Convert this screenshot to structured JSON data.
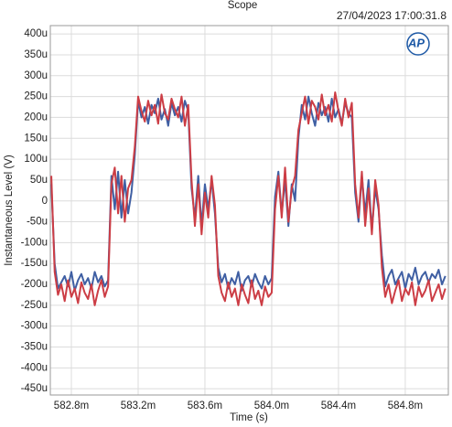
{
  "chart_data": {
    "type": "line",
    "title": "Scope",
    "subtitle": "27/04/2023 17:00:31.8",
    "logo": "AP",
    "x_label": "Time (s)",
    "y_label": "Instantaneous Level (V)",
    "grid": true,
    "xlim": [
      0.582674,
      0.585058
    ],
    "ylim": [
      -0.000465,
      0.00042
    ],
    "xticks": [
      {
        "value": 0.5828,
        "label": "582.8m"
      },
      {
        "value": 0.5832,
        "label": "583.2m"
      },
      {
        "value": 0.5836,
        "label": "583.6m"
      },
      {
        "value": 0.584,
        "label": "584.0m"
      },
      {
        "value": 0.5844,
        "label": "584.4m"
      },
      {
        "value": 0.5848,
        "label": "584.8m"
      }
    ],
    "yticks": [
      {
        "value": 0.0004,
        "label": "400u"
      },
      {
        "value": 0.00035,
        "label": "350u"
      },
      {
        "value": 0.0003,
        "label": "300u"
      },
      {
        "value": 0.00025,
        "label": "250u"
      },
      {
        "value": 0.0002,
        "label": "200u"
      },
      {
        "value": 0.00015,
        "label": "150u"
      },
      {
        "value": 0.0001,
        "label": "100u"
      },
      {
        "value": 5e-05,
        "label": "50u"
      },
      0,
      {
        "value": -5e-05,
        "label": "-50u"
      },
      {
        "value": -0.0001,
        "label": "-100u"
      },
      {
        "value": -0.00015,
        "label": "-150u"
      },
      {
        "value": -0.0002,
        "label": "-200u"
      },
      {
        "value": -0.00025,
        "label": "-250u"
      },
      {
        "value": -0.0003,
        "label": "-300u"
      },
      {
        "value": -0.00035,
        "label": "-350u"
      },
      {
        "value": -0.0004,
        "label": "-400u"
      },
      {
        "value": -0.00045,
        "label": "-450u"
      }
    ],
    "x": [
      0.58268,
      0.5827,
      0.58272,
      0.58274,
      0.58276,
      0.58278,
      0.5828,
      0.58282,
      0.58284,
      0.58286,
      0.58288,
      0.5829,
      0.58292,
      0.58294,
      0.58296,
      0.58298,
      0.583,
      0.58302,
      0.58304,
      0.58306,
      0.58308,
      0.5831,
      0.58312,
      0.58314,
      0.58316,
      0.58318,
      0.5832,
      0.58322,
      0.58324,
      0.58326,
      0.58328,
      0.5833,
      0.58332,
      0.58334,
      0.58336,
      0.58338,
      0.5834,
      0.58342,
      0.58344,
      0.58346,
      0.58348,
      0.5835,
      0.58352,
      0.58354,
      0.58356,
      0.58358,
      0.5836,
      0.58362,
      0.58364,
      0.58366,
      0.58368,
      0.5837,
      0.58372,
      0.58374,
      0.58376,
      0.58378,
      0.5838,
      0.58382,
      0.58384,
      0.58386,
      0.58388,
      0.5839,
      0.58392,
      0.58394,
      0.58396,
      0.58398,
      0.584,
      0.58402,
      0.58404,
      0.58406,
      0.58408,
      0.5841,
      0.58412,
      0.58414,
      0.58416,
      0.58418,
      0.5842,
      0.58422,
      0.58424,
      0.58426,
      0.58428,
      0.5843,
      0.58432,
      0.58434,
      0.58436,
      0.58438,
      0.5844,
      0.58442,
      0.58444,
      0.58446,
      0.58448,
      0.5845,
      0.58452,
      0.58454,
      0.58456,
      0.58458,
      0.5846,
      0.58462,
      0.58464,
      0.58466,
      0.58468,
      0.5847,
      0.58472,
      0.58474,
      0.58476,
      0.58478,
      0.5848,
      0.58482,
      0.58484,
      0.58486,
      0.58488,
      0.5849,
      0.58492,
      0.58494,
      0.58496,
      0.58498,
      0.585,
      0.58502,
      0.58504
    ],
    "series": [
      {
        "color": "#3f5fa3",
        "values": [
          4e-05,
          -0.00015,
          -0.00021,
          -0.000195,
          -0.00018,
          -0.000205,
          -0.00017,
          -0.000215,
          -0.00019,
          -0.000175,
          -0.0002,
          -0.000185,
          -0.00021,
          -0.00017,
          -0.000195,
          -0.00018,
          -0.000205,
          -0.00019,
          6e-05,
          -2e-05,
          7e-05,
          -4e-05,
          5e-05,
          -3e-05,
          2e-05,
          0.00011,
          0.00024,
          0.0002,
          0.000225,
          0.000185,
          0.00023,
          0.00021,
          0.000245,
          0.000195,
          0.00022,
          0.00018,
          0.000235,
          0.000205,
          0.000225,
          0.00019,
          0.00024,
          0.000215,
          3e-05,
          -4e-05,
          6e-05,
          -6e-05,
          4e-05,
          -2e-05,
          5e-05,
          -3e-05,
          -0.00016,
          -0.000195,
          -0.000175,
          -0.00021,
          -0.000185,
          -0.0002,
          -0.00017,
          -0.000215,
          -0.00019,
          -0.00018,
          -0.000205,
          -0.000175,
          -0.000195,
          -0.00021,
          -0.00018,
          -0.0002,
          -0.000185,
          1e-05,
          7e-05,
          -3e-05,
          5e-05,
          -6e-05,
          4e-05,
          0,
          0.00015,
          0.00023,
          0.000195,
          0.00025,
          0.00021,
          0.00018,
          0.000235,
          0.000205,
          0.000225,
          0.00019,
          0.000245,
          0.0002,
          0.00022,
          0.000185,
          0.000235,
          0.00021,
          0.0002,
          2e-05,
          -5e-05,
          6e-05,
          -3e-05,
          5e-05,
          -7e-05,
          3e-05,
          -2e-05,
          -0.00013,
          -0.000205,
          -0.00018,
          -0.000165,
          -0.0002,
          -0.000185,
          -0.00017,
          -0.00021,
          -0.000175,
          -0.00019,
          -0.00016,
          -0.0002,
          -0.00018,
          -0.00017,
          -0.000195,
          -0.000175,
          -0.000185,
          -0.000165,
          -0.0002,
          -0.00018
        ]
      },
      {
        "color": "#cc3d45",
        "values": [
          6e-05,
          -0.00017,
          -0.000225,
          -0.0002,
          -0.00024,
          -0.00019,
          -0.00023,
          -0.00021,
          -0.000245,
          -0.000195,
          -0.00022,
          -0.000235,
          -0.0002,
          -0.00025,
          -0.000215,
          -0.00019,
          -0.00023,
          -0.000205,
          4e-05,
          8e-05,
          -3e-05,
          6e-05,
          -5e-05,
          3e-05,
          5e-05,
          0.00013,
          0.00025,
          0.000215,
          0.00019,
          0.00024,
          0.000205,
          0.00023,
          0.000185,
          0.000255,
          0.00021,
          0.000195,
          0.000245,
          0.00022,
          0.0002,
          0.00025,
          0.00018,
          0.00023,
          5e-05,
          -6e-05,
          4e-05,
          -8e-05,
          2e-05,
          -4e-05,
          6e-05,
          -1e-05,
          -0.00018,
          -0.00022,
          -0.00024,
          -0.000195,
          -0.00023,
          -0.00021,
          -0.00025,
          -0.0002,
          -0.000225,
          -0.000245,
          -0.00019,
          -0.000235,
          -0.000215,
          -0.00025,
          -0.000205,
          -0.00023,
          -0.00022,
          -2e-05,
          6e-05,
          -4e-05,
          8e-05,
          -5e-05,
          3e-05,
          6e-05,
          0.00017,
          0.00021,
          0.00025,
          0.000185,
          0.00024,
          0.000225,
          0.000195,
          0.000255,
          0.000205,
          0.00023,
          0.00019,
          0.00026,
          0.000215,
          0.00018,
          0.000245,
          0.0002,
          0.000235,
          4e-05,
          -4e-05,
          7e-05,
          -6e-05,
          3e-05,
          -8e-05,
          5e-05,
          -1e-05,
          -0.00016,
          -0.00023,
          -0.0002,
          -0.000245,
          -0.000215,
          -0.00019,
          -0.00024,
          -0.00021,
          -0.000225,
          -0.000195,
          -0.00025,
          -0.000205,
          -0.00023,
          -0.000215,
          -0.00019,
          -0.00024,
          -0.00022,
          -0.0002,
          -0.000235,
          -0.00021
        ]
      }
    ]
  }
}
